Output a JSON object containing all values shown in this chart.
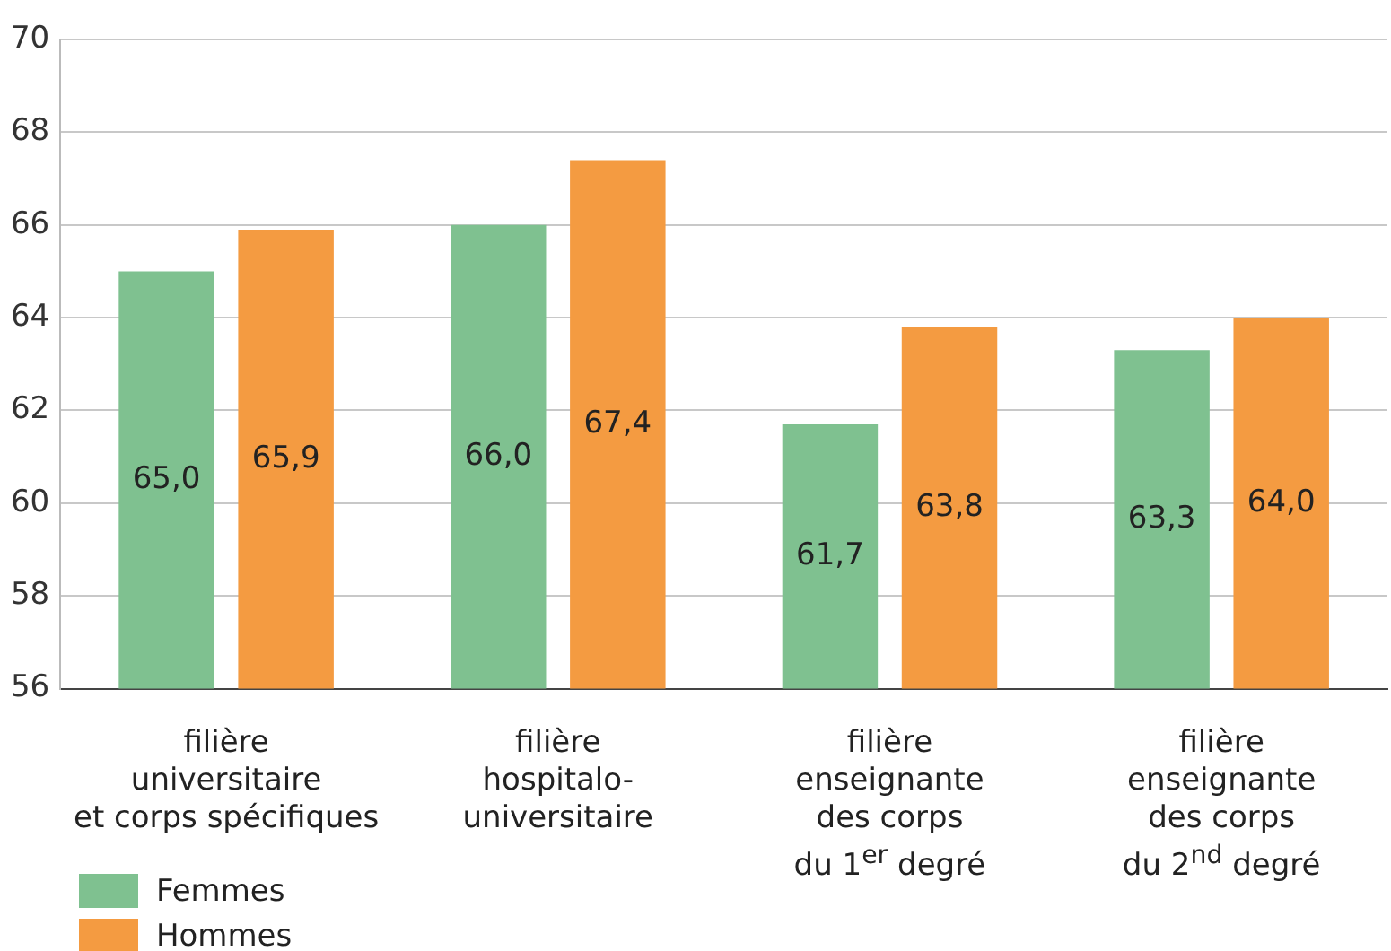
{
  "chart_data": {
    "type": "bar",
    "categories": [
      "filière\nuniversitaire\net corps spécifiques",
      "filière\nhospitalo-\nuniversitaire",
      "filière\nenseignante\ndes corps\ndu 1$^{er}$ degré",
      "filière\nenseignante\ndes corps\ndu 2$^{nd}$ degré"
    ],
    "series": [
      {
        "name": "Femmes",
        "color": "#7fc190",
        "values": [
          65.0,
          66.0,
          61.7,
          63.3
        ]
      },
      {
        "name": "Hommes",
        "color": "#f49b41",
        "values": [
          65.9,
          67.4,
          63.8,
          64.0
        ]
      }
    ],
    "value_labels": [
      [
        "65,0",
        "66,0",
        "61,7",
        "63,3"
      ],
      [
        "65,9",
        "67,4",
        "63,8",
        "64,0"
      ]
    ],
    "ylim": [
      56,
      70
    ],
    "yticks": [
      56,
      58,
      60,
      62,
      64,
      66,
      68,
      70
    ],
    "grid": "y",
    "legend": "bottom left"
  }
}
